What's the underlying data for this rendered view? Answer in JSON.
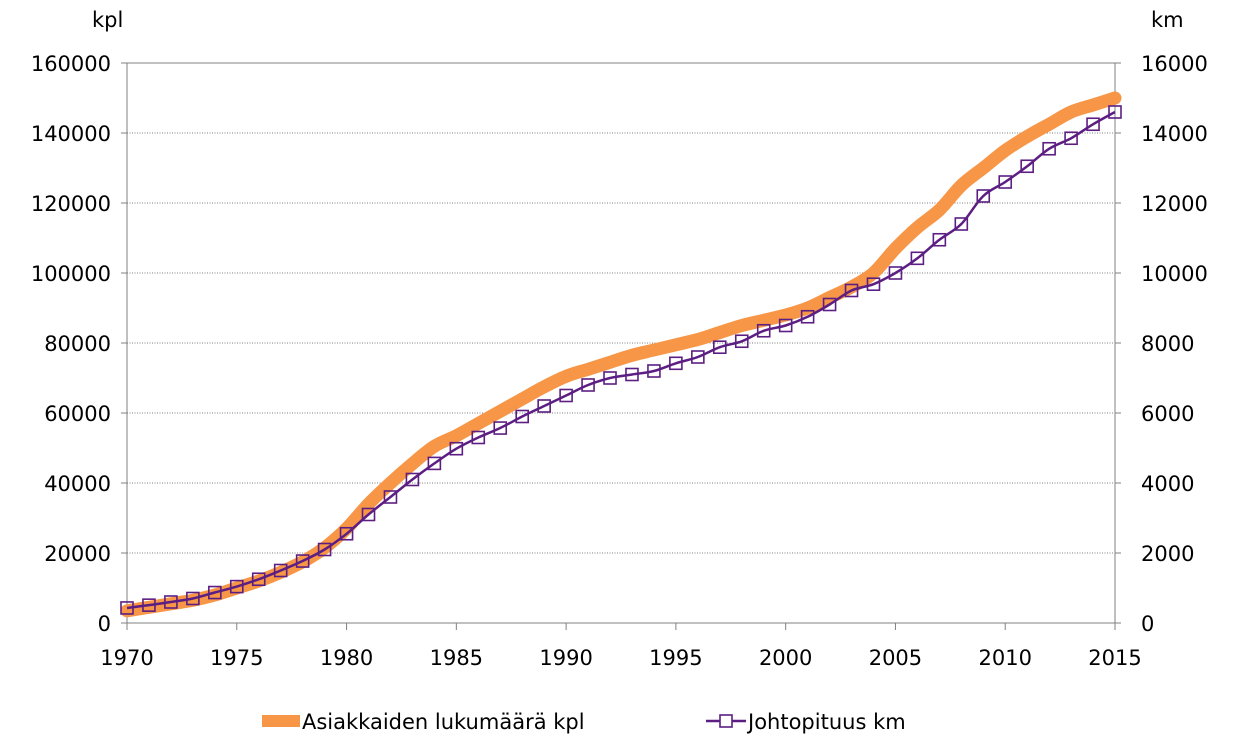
{
  "chart_data": {
    "type": "line",
    "x": [
      1970,
      1971,
      1972,
      1973,
      1974,
      1975,
      1976,
      1977,
      1978,
      1979,
      1980,
      1981,
      1982,
      1983,
      1984,
      1985,
      1986,
      1987,
      1988,
      1989,
      1990,
      1991,
      1992,
      1993,
      1994,
      1995,
      1996,
      1997,
      1998,
      1999,
      2000,
      2001,
      2002,
      2003,
      2004,
      2005,
      2006,
      2007,
      2008,
      2009,
      2010,
      2011,
      2012,
      2013,
      2014,
      2015
    ],
    "x_ticks": [
      "1970",
      "1975",
      "1980",
      "1985",
      "1990",
      "1995",
      "2000",
      "2005",
      "2010",
      "2015"
    ],
    "x_range": [
      1970,
      2015
    ],
    "y_left": {
      "unit_label": "kpl",
      "range": [
        0,
        160000
      ],
      "ticks": [
        "0",
        "20000",
        "40000",
        "60000",
        "80000",
        "100000",
        "120000",
        "140000",
        "160000"
      ]
    },
    "y_right": {
      "unit_label": "km",
      "range": [
        0,
        16000
      ],
      "ticks": [
        "0",
        "2000",
        "4000",
        "6000",
        "8000",
        "10000",
        "12000",
        "14000",
        "16000"
      ]
    },
    "grid": true,
    "legend_position": "bottom",
    "series": [
      {
        "name": "Asiakkaiden lukumäärä kpl",
        "axis": "left",
        "color": "#F79646",
        "marker": "none",
        "values": [
          3500,
          4500,
          5500,
          6500,
          8000,
          10000,
          12000,
          14500,
          17500,
          21500,
          27000,
          34000,
          40000,
          45500,
          50500,
          53500,
          57000,
          60500,
          64000,
          67500,
          70500,
          72500,
          74500,
          76500,
          78000,
          79500,
          81000,
          83000,
          85000,
          86500,
          88000,
          90000,
          93000,
          96000,
          100000,
          107000,
          113000,
          118000,
          125000,
          130000,
          135000,
          139000,
          142500,
          146000,
          148000,
          150000
        ]
      },
      {
        "name": "Johtopituus km",
        "axis": "right",
        "color": "#5C1E82",
        "marker": "square",
        "values": [
          430,
          510,
          600,
          700,
          870,
          1040,
          1250,
          1500,
          1770,
          2100,
          2550,
          3100,
          3600,
          4100,
          4560,
          4980,
          5300,
          5570,
          5900,
          6200,
          6500,
          6800,
          7000,
          7100,
          7200,
          7420,
          7600,
          7880,
          8050,
          8350,
          8500,
          8750,
          9100,
          9500,
          9680,
          10000,
          10420,
          10950,
          11400,
          12200,
          12600,
          13050,
          13550,
          13850,
          14250,
          14600
        ]
      }
    ]
  }
}
